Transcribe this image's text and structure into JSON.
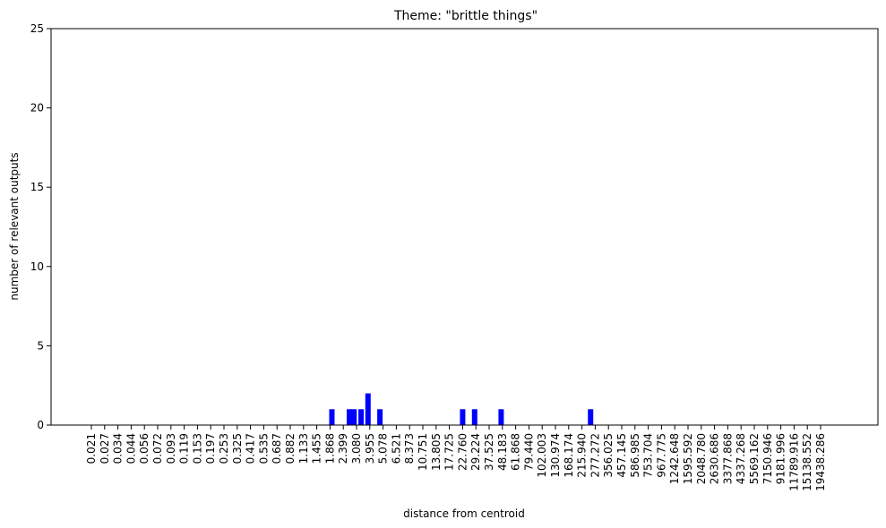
{
  "chart_data": {
    "type": "bar",
    "title": "Theme: \"brittle things\"",
    "xlabel": "distance from centroid",
    "ylabel": "number of relevant outputs",
    "ylim": [
      0,
      25
    ],
    "yticks": [
      "0",
      "5",
      "10",
      "15",
      "20",
      "25"
    ],
    "grid": false,
    "bar_color": "#0000ff",
    "labeled_categories": [
      "0.021",
      "0.027",
      "0.034",
      "0.044",
      "0.056",
      "0.072",
      "0.093",
      "0.119",
      "0.153",
      "0.197",
      "0.253",
      "0.325",
      "0.417",
      "0.535",
      "0.687",
      "0.882",
      "1.133",
      "1.455",
      "1.868",
      "2.399",
      "3.080",
      "3.955",
      "5.078",
      "6.521",
      "8.373",
      "10.751",
      "13.805",
      "17.725",
      "22.760",
      "29.224",
      "37.525",
      "48.183",
      "61.868",
      "79.440",
      "102.003",
      "130.974",
      "168.174",
      "215.940",
      "277.272",
      "356.025",
      "457.145",
      "586.985",
      "753.704",
      "967.775",
      "1242.648",
      "1595.592",
      "2048.780",
      "2630.686",
      "3377.868",
      "4337.268",
      "5569.162",
      "7150.946",
      "9181.996",
      "11789.916",
      "15138.552",
      "19438.286"
    ],
    "bars": [
      {
        "x": 1.95,
        "value": 1
      },
      {
        "x": 2.71,
        "value": 1
      },
      {
        "x": 2.96,
        "value": 1
      },
      {
        "x": 3.38,
        "value": 1
      },
      {
        "x": 3.85,
        "value": 2
      },
      {
        "x": 4.82,
        "value": 1
      },
      {
        "x": 22.9,
        "value": 1
      },
      {
        "x": 28.7,
        "value": 1
      },
      {
        "x": 47.3,
        "value": 1
      },
      {
        "x": 255.0,
        "value": 1
      }
    ]
  }
}
